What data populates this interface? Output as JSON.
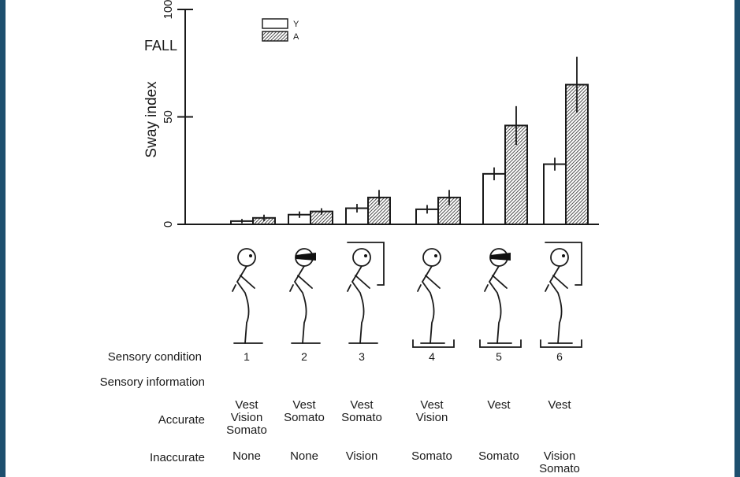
{
  "frame_color": "#1d4f6e",
  "chart_data": {
    "type": "bar",
    "title": "",
    "ylabel": "Sway index",
    "ylim": [
      0,
      100
    ],
    "yticks": [
      "0",
      "50",
      "100"
    ],
    "fall_label": "FALL",
    "legend": {
      "placement": "top-center",
      "entries": [
        "Y",
        "A"
      ]
    },
    "categories": [
      "1",
      "2",
      "3",
      "4",
      "5",
      "6"
    ],
    "series": [
      {
        "name": "Y",
        "fill": "open",
        "values": [
          1.5,
          4.5,
          7.5,
          7,
          23.5,
          28
        ],
        "errors": [
          1,
          1.5,
          2,
          2,
          3,
          3
        ]
      },
      {
        "name": "A",
        "fill": "hatched",
        "values": [
          3,
          6,
          12.5,
          12.5,
          46,
          65
        ],
        "errors": [
          1.5,
          1.5,
          3.5,
          3.5,
          9,
          13
        ]
      }
    ]
  },
  "conditions": {
    "row_label": "Sensory condition",
    "info_label": "Sensory information",
    "accurate_label": "Accurate",
    "inaccurate_label": "Inaccurate",
    "items": [
      {
        "number": "1",
        "visor": false,
        "surround": false,
        "platform": false,
        "accurate": [
          "Vest",
          "Vision",
          "Somato"
        ],
        "inaccurate": [
          "None"
        ]
      },
      {
        "number": "2",
        "visor": true,
        "surround": false,
        "platform": false,
        "accurate": [
          "Vest",
          "Somato"
        ],
        "inaccurate": [
          "None"
        ]
      },
      {
        "number": "3",
        "visor": false,
        "surround": true,
        "platform": false,
        "accurate": [
          "Vest",
          "Somato"
        ],
        "inaccurate": [
          "Vision"
        ]
      },
      {
        "number": "4",
        "visor": false,
        "surround": false,
        "platform": true,
        "accurate": [
          "Vest",
          "Vision"
        ],
        "inaccurate": [
          "Somato"
        ]
      },
      {
        "number": "5",
        "visor": true,
        "surround": false,
        "platform": true,
        "accurate": [
          "Vest"
        ],
        "inaccurate": [
          "Somato"
        ]
      },
      {
        "number": "6",
        "visor": false,
        "surround": true,
        "platform": true,
        "accurate": [
          "Vest"
        ],
        "inaccurate": [
          "Vision",
          "Somato"
        ]
      }
    ]
  }
}
